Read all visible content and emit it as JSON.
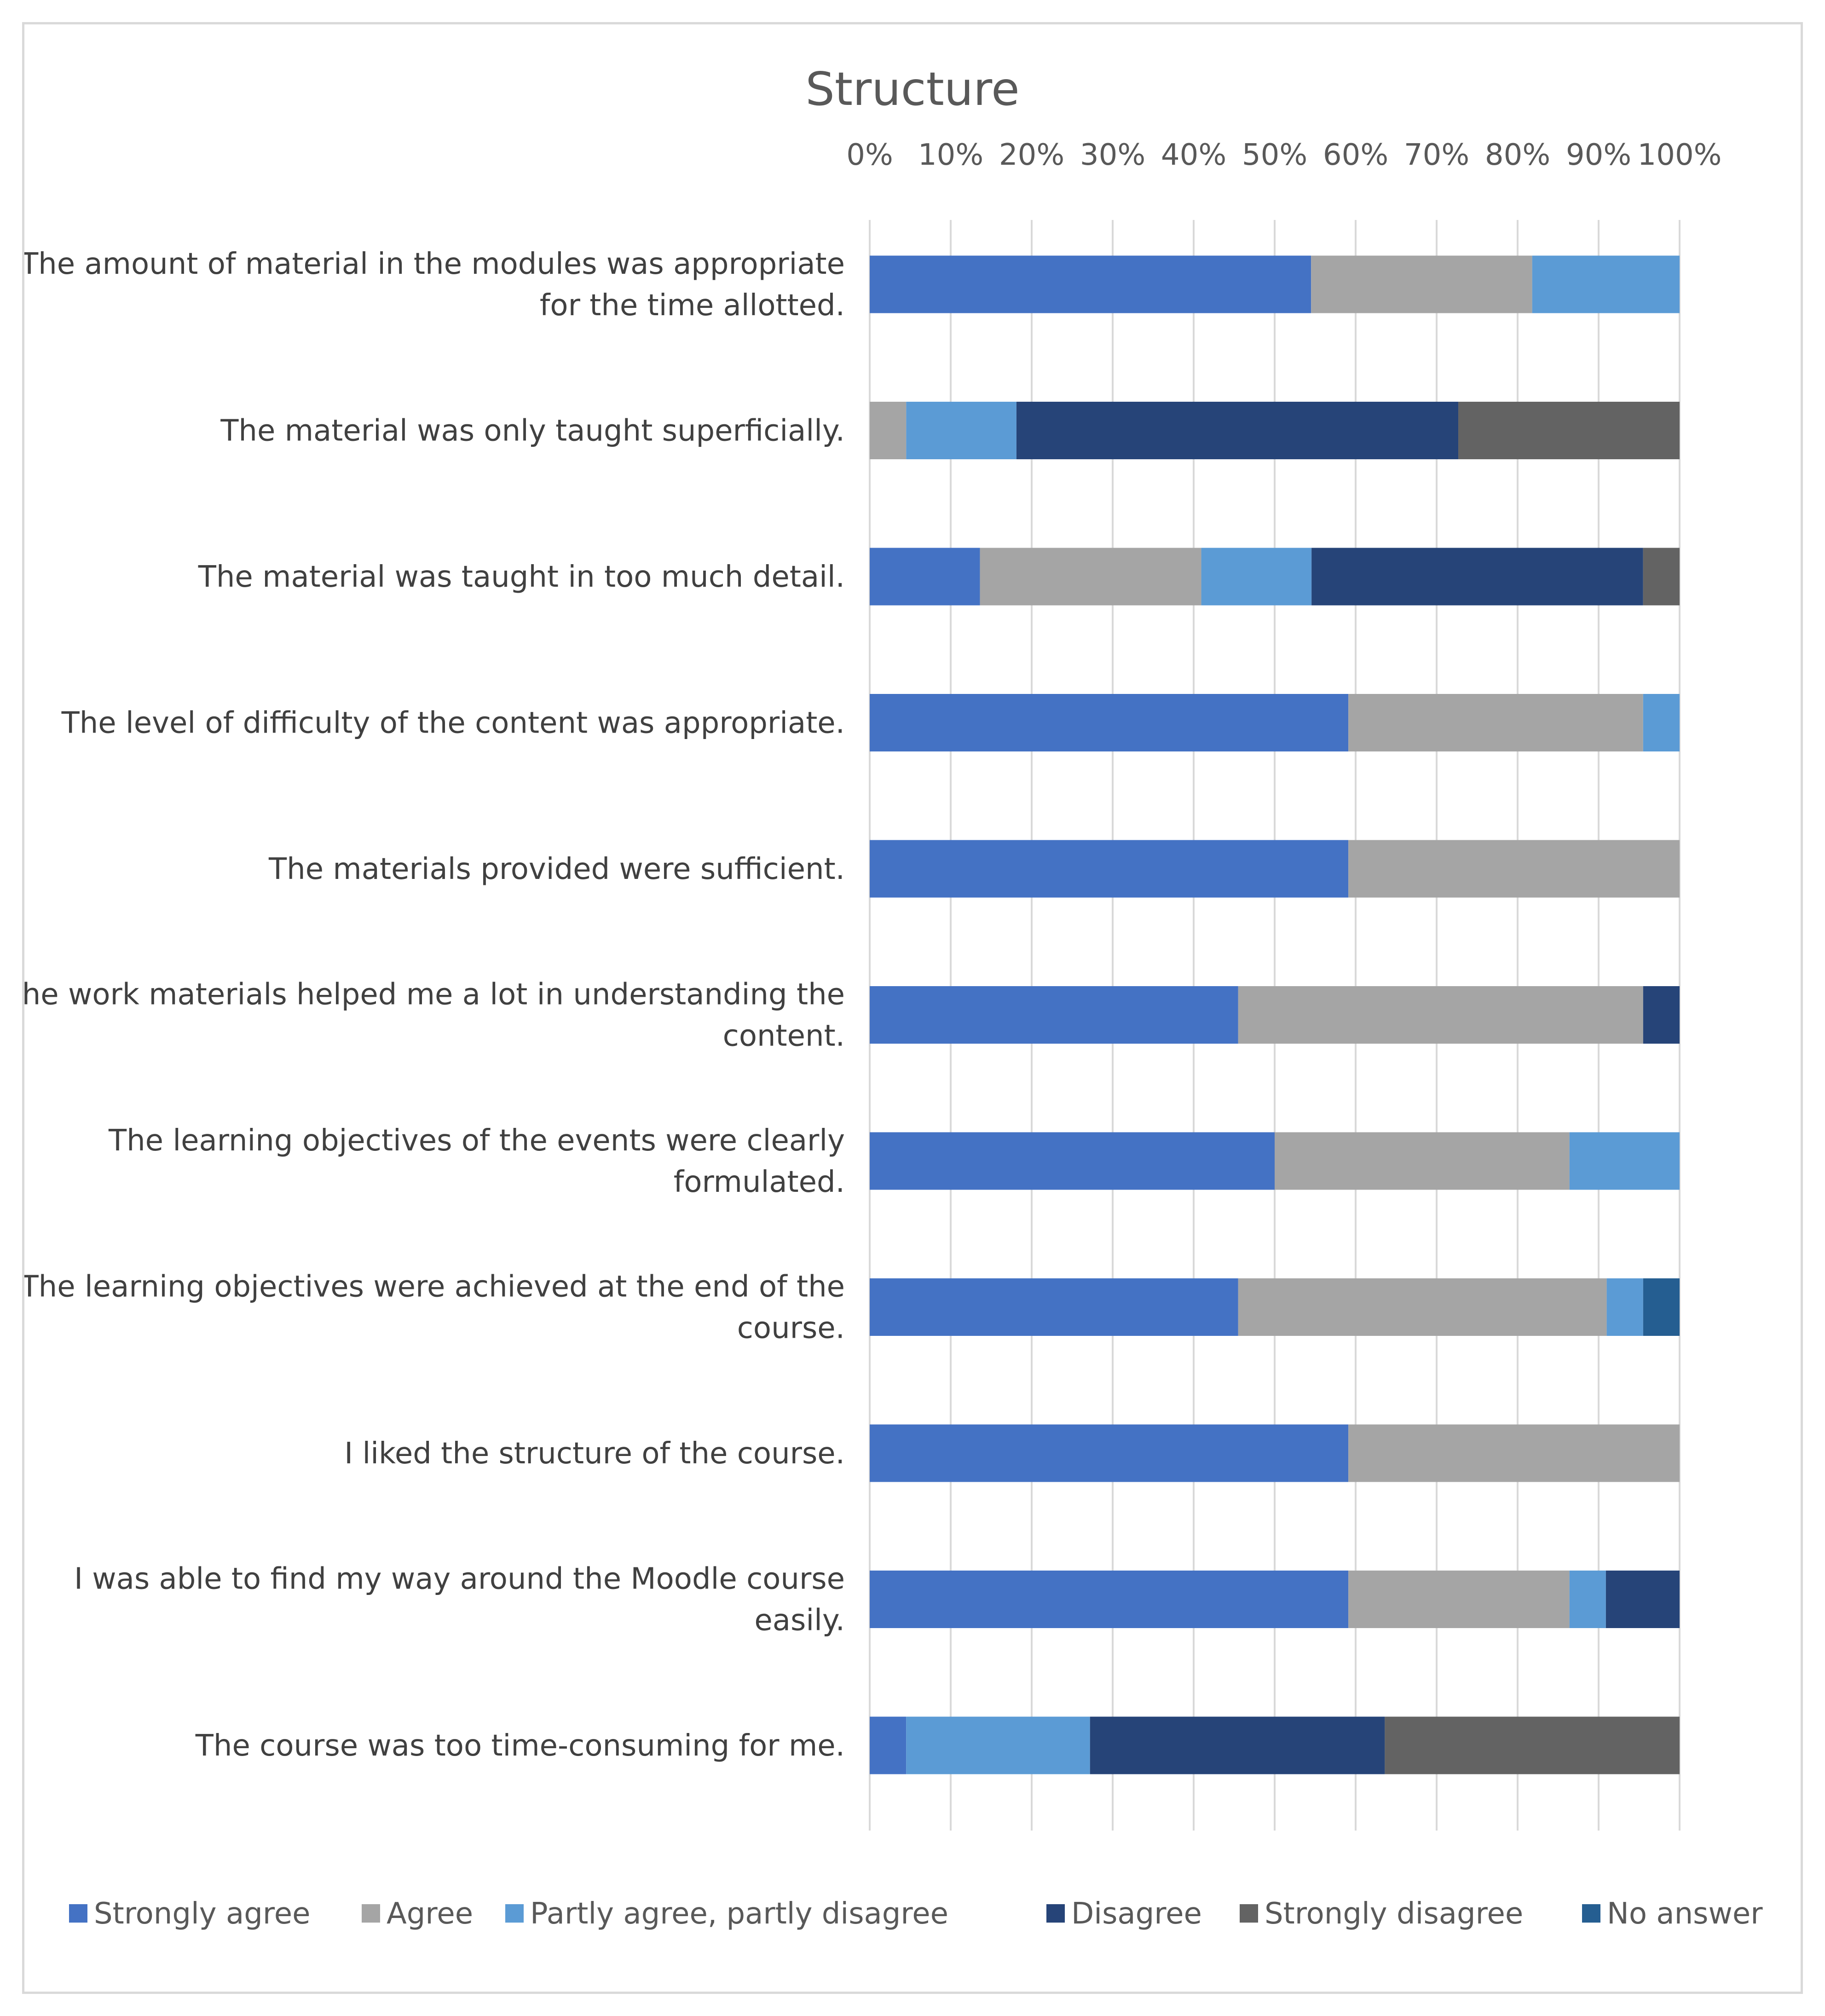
{
  "chart_data": {
    "type": "bar",
    "orientation": "horizontal",
    "stacked": "percent",
    "title": "Structure",
    "xlabel": "",
    "ylabel": "",
    "xlim": [
      0,
      100
    ],
    "x_ticks": [
      "0%",
      "10%",
      "20%",
      "30%",
      "40%",
      "50%",
      "60%",
      "70%",
      "80%",
      "90%",
      "100%"
    ],
    "x_axis_position": "top",
    "grid": true,
    "legend_position": "bottom",
    "categories": [
      [
        "The amount of material in the modules was appropriate",
        "for the time allotted."
      ],
      [
        "The material was only taught superficially."
      ],
      [
        "The material was taught in too much detail."
      ],
      [
        "The level of difficulty of the content was appropriate."
      ],
      [
        "The materials provided were sufficient."
      ],
      [
        "The work materials helped me a lot in understanding the",
        "content."
      ],
      [
        "The learning objectives of the events were clearly",
        "formulated."
      ],
      [
        "The learning objectives were achieved at the end of the",
        "course."
      ],
      [
        "I liked the structure of the course."
      ],
      [
        "I was able to find my way around the Moodle course",
        "easily."
      ],
      [
        "The course was too time-consuming for me."
      ]
    ],
    "series": [
      {
        "name": "Strongly agree",
        "color": "#4472c4",
        "values": [
          54.5,
          0,
          13.6,
          59.1,
          59.1,
          45.5,
          50.0,
          45.5,
          59.1,
          59.1,
          4.5
        ]
      },
      {
        "name": "Agree",
        "color": "#a5a5a5",
        "values": [
          27.3,
          4.5,
          27.3,
          36.4,
          40.9,
          50.0,
          36.4,
          45.5,
          40.9,
          27.3,
          0
        ]
      },
      {
        "name": "Partly agree, partly disagree",
        "color": "#5b9bd5",
        "values": [
          18.2,
          13.6,
          13.6,
          4.5,
          0,
          0,
          13.6,
          4.5,
          0,
          4.5,
          22.7
        ]
      },
      {
        "name": "Disagree",
        "color": "#264478",
        "values": [
          0,
          54.5,
          40.9,
          0,
          0,
          4.5,
          0,
          0,
          0,
          9.1,
          36.4
        ]
      },
      {
        "name": "Strongly disagree",
        "color": "#636363",
        "values": [
          0,
          27.3,
          4.5,
          0,
          0,
          0,
          0,
          0,
          0,
          0,
          36.4
        ]
      },
      {
        "name": "No answer",
        "color": "#255e91",
        "values": [
          0,
          0,
          0,
          0,
          0,
          0,
          0,
          4.5,
          0,
          0,
          0
        ]
      }
    ]
  }
}
